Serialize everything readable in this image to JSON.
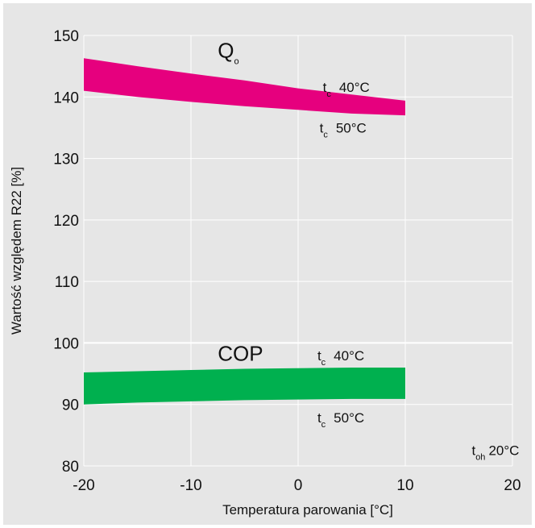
{
  "chart_data": {
    "type": "area",
    "title": "",
    "xlabel": "Temperatura parowania [°C]",
    "ylabel": "Wartość względem R22 [%]",
    "xlim": [
      -20,
      20
    ],
    "ylim": [
      80,
      150
    ],
    "xticks": [
      "-20",
      "-10",
      "0",
      "10",
      "20"
    ],
    "yticks": [
      "80",
      "90",
      "100",
      "110",
      "120",
      "130",
      "140",
      "150"
    ],
    "grid": true,
    "bands": [
      {
        "name": "Qo",
        "label_main": "Q",
        "label_sub": "o",
        "color": "#e6007e",
        "x": [
          -20,
          -15,
          -10,
          -5,
          0,
          5,
          10
        ],
        "upper": [
          146.3,
          145.0,
          143.8,
          142.7,
          141.4,
          140.4,
          139.4
        ],
        "lower": [
          141.0,
          140.0,
          139.2,
          138.5,
          137.9,
          137.3,
          137.0
        ],
        "upper_label": {
          "t": "t",
          "sub": "c",
          "value": "40°C"
        },
        "lower_label": {
          "t": "t",
          "sub": "c",
          "value": "50°C"
        }
      },
      {
        "name": "COP",
        "label_main": "COP",
        "label_sub": "",
        "color": "#00b04f",
        "x": [
          -20,
          -15,
          -10,
          -5,
          0,
          5,
          10
        ],
        "upper": [
          95.2,
          95.4,
          95.6,
          95.8,
          95.9,
          96.0,
          96.0
        ],
        "lower": [
          90.0,
          90.3,
          90.5,
          90.7,
          90.8,
          90.9,
          90.9
        ],
        "upper_label": {
          "t": "t",
          "sub": "c",
          "value": "40°C"
        },
        "lower_label": {
          "t": "t",
          "sub": "c",
          "value": "50°C"
        }
      }
    ],
    "annotation": {
      "t": "t",
      "sub": "oh",
      "value": "20°C"
    },
    "colors": {
      "background": "#e6e6e6",
      "grid": "#ffffff",
      "reference_line": "#ffffff"
    }
  }
}
